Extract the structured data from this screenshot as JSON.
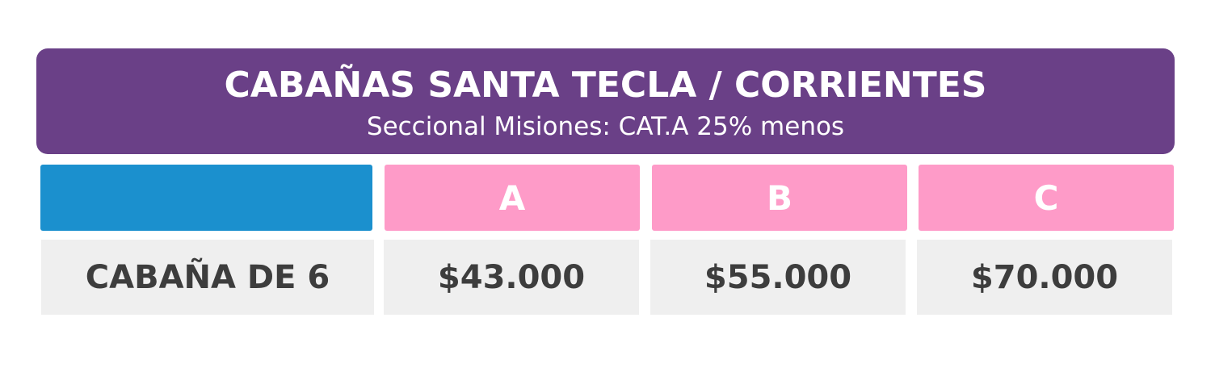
{
  "header": {
    "title": "CABAÑAS SANTA TECLA / CORRIENTES",
    "subtitle": "Seccional Misiones: CAT.A 25% menos"
  },
  "table": {
    "columns": [
      "A",
      "B",
      "C"
    ],
    "rows": [
      [
        "CABAÑA DE 6",
        "$43.000",
        "$55.000",
        "$70.000"
      ]
    ]
  }
}
